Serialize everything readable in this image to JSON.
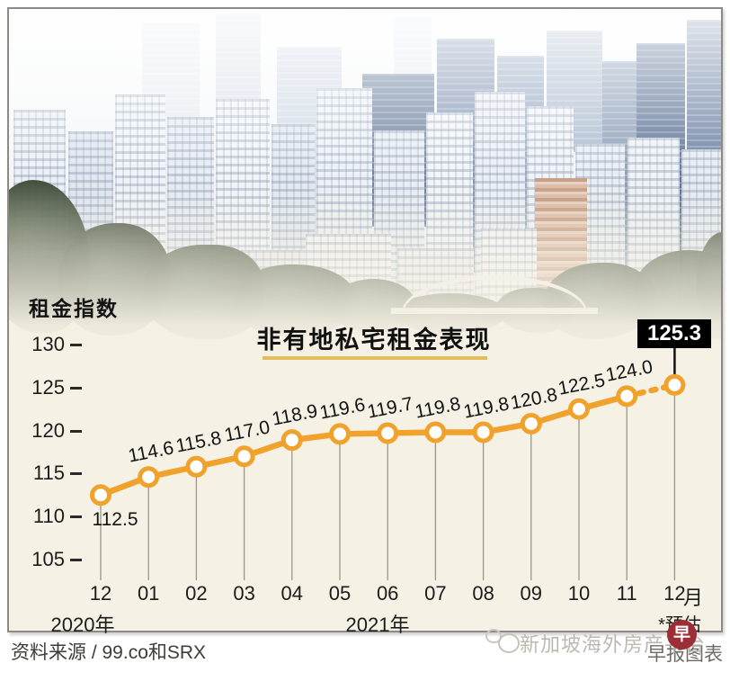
{
  "chart_data": {
    "type": "line",
    "title": "非有地私宅租金表现",
    "ylabel": "租金指数",
    "categories": [
      "12",
      "01",
      "02",
      "03",
      "04",
      "05",
      "06",
      "07",
      "08",
      "09",
      "10",
      "11",
      "12"
    ],
    "values": [
      112.5,
      114.6,
      115.8,
      117.0,
      118.9,
      119.6,
      119.7,
      119.8,
      119.8,
      120.8,
      122.5,
      124.0,
      125.3
    ],
    "yticks": [
      130,
      125,
      120,
      115,
      110,
      105
    ],
    "ylim": [
      103,
      132
    ],
    "grid": false,
    "line_color": "#F0A22C",
    "marker_fill": "#ffffff",
    "drop_line_color": "#9b968b",
    "last_segment_style": "dashed-estimate",
    "x_groups": [
      {
        "label": "2020年"
      },
      {
        "label": "2021年"
      }
    ],
    "xaxis_unit": "月",
    "estimate_note": "*预估",
    "callout": {
      "value": "125.3",
      "bg": "#000000",
      "text_color": "#ffffff"
    }
  },
  "footer": {
    "source": "资料来源 / 99.co和SRX",
    "watermark": "新加坡海外房产平台",
    "credit": "早报图表",
    "logo_char": "早",
    "logo_color": "#9c2e38"
  },
  "colors": {
    "panel_background": "#f5f1e4",
    "frame_border": "#8c8a82",
    "title_underline": "#e2bd5e"
  }
}
